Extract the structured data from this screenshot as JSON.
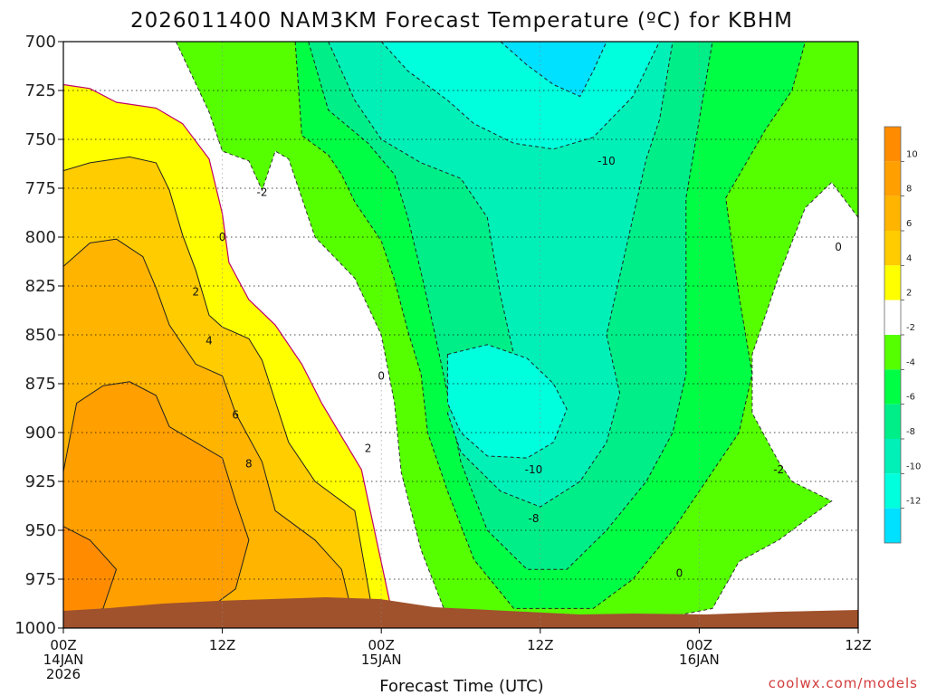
{
  "chart_data": {
    "type": "heatmap",
    "title": "2026011400 NAM3KM Forecast Temperature (ºC) for KBHM",
    "xlabel": "Forecast Time (UTC)",
    "ylabel": "",
    "credit": "coolwx.com/models",
    "x_ticks": [
      {
        "hour": 0,
        "line1": "00Z",
        "line2": "14JAN",
        "line3": "2026"
      },
      {
        "hour": 12,
        "line1": "12Z",
        "line2": "",
        "line3": ""
      },
      {
        "hour": 24,
        "line1": "00Z",
        "line2": "15JAN",
        "line3": ""
      },
      {
        "hour": 36,
        "line1": "12Z",
        "line2": "",
        "line3": ""
      },
      {
        "hour": 48,
        "line1": "00Z",
        "line2": "16JAN",
        "line3": ""
      },
      {
        "hour": 60,
        "line1": "12Z",
        "line2": "",
        "line3": ""
      }
    ],
    "xlim": [
      0,
      60
    ],
    "y_ticks": [
      "700",
      "725",
      "750",
      "775",
      "800",
      "825",
      "850",
      "875",
      "900",
      "925",
      "950",
      "975",
      "1000"
    ],
    "ylim": [
      700,
      1000
    ],
    "grid": true,
    "colorbar": {
      "ticks": [
        "10",
        "8",
        "6",
        "4",
        "2",
        "-2",
        "-4",
        "-6",
        "-8",
        "-10",
        "-12"
      ],
      "bins": [
        {
          "min": 10,
          "max": 12,
          "color": "#ff8c00"
        },
        {
          "min": 8,
          "max": 10,
          "color": "#ff9f00"
        },
        {
          "min": 6,
          "max": 8,
          "color": "#ffb400"
        },
        {
          "min": 4,
          "max": 6,
          "color": "#ffcc00"
        },
        {
          "min": 2,
          "max": 4,
          "color": "#ffff00"
        },
        {
          "min": -2,
          "max": 2,
          "color": "#ffffff"
        },
        {
          "min": -4,
          "max": -2,
          "color": "#55ff00"
        },
        {
          "min": -6,
          "max": -4,
          "color": "#00ff44"
        },
        {
          "min": -8,
          "max": -6,
          "color": "#00ee88"
        },
        {
          "min": -10,
          "max": -8,
          "color": "#00f0b8"
        },
        {
          "min": -12,
          "max": -10,
          "color": "#00ffdd"
        },
        {
          "min": -14,
          "max": -12,
          "color": "#00e0ff"
        }
      ]
    },
    "contour_labels": [
      {
        "text": "-2",
        "hour": 15.0,
        "p": 777
      },
      {
        "text": "0",
        "hour": 12.0,
        "p": 800
      },
      {
        "text": "2",
        "hour": 10.0,
        "p": 828
      },
      {
        "text": "4",
        "hour": 11.0,
        "p": 853
      },
      {
        "text": "6",
        "hour": 13.0,
        "p": 891
      },
      {
        "text": "8",
        "hour": 14.0,
        "p": 916
      },
      {
        "text": "0",
        "hour": 24.0,
        "p": 871
      },
      {
        "text": "2",
        "hour": 23.0,
        "p": 908
      },
      {
        "text": "-10",
        "hour": 41.0,
        "p": 761
      },
      {
        "text": "-10",
        "hour": 35.5,
        "p": 919
      },
      {
        "text": "-8",
        "hour": 35.5,
        "p": 944
      },
      {
        "text": "0",
        "hour": 46.5,
        "p": 972
      },
      {
        "text": "-2",
        "hour": 54.0,
        "p": 919
      },
      {
        "text": "0",
        "hour": 58.5,
        "p": 805
      }
    ],
    "fields": [
      {
        "level": 2,
        "color": "#ffff00",
        "points": [
          [
            0,
            722
          ],
          [
            2,
            724
          ],
          [
            4,
            731
          ],
          [
            7,
            734
          ],
          [
            9,
            742
          ],
          [
            11,
            760
          ],
          [
            12,
            788
          ],
          [
            12.5,
            813
          ],
          [
            14,
            832
          ],
          [
            16,
            845
          ],
          [
            18,
            865
          ],
          [
            19.5,
            885
          ],
          [
            21,
            902
          ],
          [
            22.5,
            919
          ],
          [
            25,
            998
          ],
          [
            0,
            998
          ]
        ]
      },
      {
        "level": 4,
        "color": "#ffcc00",
        "points": [
          [
            0,
            766
          ],
          [
            2,
            762
          ],
          [
            5,
            759
          ],
          [
            7,
            762
          ],
          [
            8,
            776
          ],
          [
            9,
            799
          ],
          [
            10,
            817
          ],
          [
            11,
            840
          ],
          [
            12,
            846
          ],
          [
            14,
            852
          ],
          [
            15,
            863
          ],
          [
            16,
            884
          ],
          [
            17,
            905
          ],
          [
            19,
            925
          ],
          [
            22,
            940
          ],
          [
            23.5,
            998
          ],
          [
            0,
            998
          ]
        ]
      },
      {
        "level": 6,
        "color": "#ffb400",
        "points": [
          [
            0,
            815
          ],
          [
            2,
            803
          ],
          [
            4,
            801
          ],
          [
            6,
            810
          ],
          [
            7,
            826
          ],
          [
            8,
            845
          ],
          [
            10,
            865
          ],
          [
            12,
            871
          ],
          [
            13,
            890
          ],
          [
            15,
            915
          ],
          [
            16,
            940
          ],
          [
            19,
            955
          ],
          [
            21,
            970
          ],
          [
            22,
            998
          ],
          [
            0,
            998
          ]
        ]
      },
      {
        "level": 8,
        "color": "#ff9f00",
        "points": [
          [
            0,
            920
          ],
          [
            1,
            885
          ],
          [
            3,
            876
          ],
          [
            5,
            874
          ],
          [
            7,
            881
          ],
          [
            8,
            897
          ],
          [
            10,
            905
          ],
          [
            12,
            913
          ],
          [
            13,
            935
          ],
          [
            14,
            955
          ],
          [
            13,
            980
          ],
          [
            11,
            990
          ],
          [
            7,
            998
          ],
          [
            0,
            998
          ]
        ]
      },
      {
        "level": 10,
        "color": "#ff8c00",
        "points": [
          [
            0,
            948
          ],
          [
            2,
            955
          ],
          [
            4,
            970
          ],
          [
            3,
            990
          ],
          [
            0,
            998
          ]
        ]
      },
      {
        "level": -2,
        "color": "#55ff00",
        "points": [
          [
            8.5,
            700
          ],
          [
            11,
            736
          ],
          [
            12,
            756
          ],
          [
            14,
            761
          ],
          [
            15,
            776
          ],
          [
            16,
            756
          ],
          [
            17,
            760
          ],
          [
            18,
            780
          ],
          [
            19,
            800
          ],
          [
            22,
            821
          ],
          [
            24,
            850
          ],
          [
            25,
            885
          ],
          [
            25.5,
            920
          ],
          [
            27,
            960
          ],
          [
            29,
            995
          ],
          [
            43,
            998
          ],
          [
            49,
            990
          ],
          [
            51,
            966
          ],
          [
            54,
            955
          ],
          [
            58,
            935
          ],
          [
            55,
            925
          ],
          [
            54,
            915
          ],
          [
            52,
            890
          ],
          [
            52,
            860
          ],
          [
            54,
            820
          ],
          [
            56,
            785
          ],
          [
            58,
            772
          ],
          [
            60,
            790
          ],
          [
            60,
            700
          ]
        ]
      },
      {
        "level": -4,
        "color": "#00ff44",
        "points": [
          [
            17.5,
            700
          ],
          [
            18,
            748
          ],
          [
            20,
            758
          ],
          [
            21,
            768
          ],
          [
            22,
            782
          ],
          [
            24,
            802
          ],
          [
            25,
            822
          ],
          [
            26,
            848
          ],
          [
            27,
            870
          ],
          [
            27.5,
            900
          ],
          [
            29,
            930
          ],
          [
            31,
            965
          ],
          [
            34,
            990
          ],
          [
            40,
            990
          ],
          [
            43,
            975
          ],
          [
            46,
            950
          ],
          [
            49,
            920
          ],
          [
            51,
            900
          ],
          [
            52,
            870
          ],
          [
            51,
            830
          ],
          [
            50,
            780
          ],
          [
            53,
            745
          ],
          [
            55,
            725
          ],
          [
            56,
            700
          ]
        ]
      },
      {
        "level": -6,
        "color": "#00ee88",
        "points": [
          [
            18.5,
            700
          ],
          [
            20,
            735
          ],
          [
            23,
            752
          ],
          [
            25,
            768
          ],
          [
            26,
            790
          ],
          [
            27,
            818
          ],
          [
            28,
            848
          ],
          [
            29,
            880
          ],
          [
            30,
            915
          ],
          [
            32,
            950
          ],
          [
            35,
            970
          ],
          [
            38,
            970
          ],
          [
            41,
            950
          ],
          [
            44,
            925
          ],
          [
            46,
            900
          ],
          [
            47,
            870
          ],
          [
            47,
            830
          ],
          [
            47,
            780
          ],
          [
            48,
            740
          ],
          [
            49,
            700
          ]
        ]
      },
      {
        "level": -8,
        "color": "#00f0b8",
        "points": [
          [
            20,
            700
          ],
          [
            22,
            730
          ],
          [
            24,
            750
          ],
          [
            27,
            762
          ],
          [
            30,
            770
          ],
          [
            32,
            790
          ],
          [
            33,
            830
          ],
          [
            34,
            860
          ],
          [
            31,
            875
          ],
          [
            29,
            890
          ],
          [
            30,
            910
          ],
          [
            33,
            930
          ],
          [
            36,
            938
          ],
          [
            39,
            925
          ],
          [
            41,
            905
          ],
          [
            42,
            880
          ],
          [
            41,
            850
          ],
          [
            42,
            820
          ],
          [
            43,
            790
          ],
          [
            44,
            760
          ],
          [
            45,
            740
          ],
          [
            46,
            700
          ]
        ]
      },
      {
        "level": -10,
        "color": "#00ffdd",
        "points": [
          [
            29,
            860
          ],
          [
            32,
            855
          ],
          [
            35,
            862
          ],
          [
            37,
            875
          ],
          [
            38,
            888
          ],
          [
            37,
            905
          ],
          [
            35,
            913
          ],
          [
            32,
            912
          ],
          [
            30,
            900
          ],
          [
            29,
            885
          ]
        ]
      },
      {
        "level": -10,
        "color": "#00ffdd",
        "points": [
          [
            24,
            700
          ],
          [
            26,
            715
          ],
          [
            29,
            730
          ],
          [
            31,
            742
          ],
          [
            34,
            752
          ],
          [
            37,
            755
          ],
          [
            40,
            749
          ],
          [
            43,
            728
          ],
          [
            45,
            700
          ]
        ]
      },
      {
        "level": -12,
        "color": "#00e0ff",
        "points": [
          [
            33,
            700
          ],
          [
            35,
            712
          ],
          [
            37,
            722
          ],
          [
            39,
            728
          ],
          [
            40,
            715
          ],
          [
            41,
            700
          ]
        ]
      }
    ]
  }
}
